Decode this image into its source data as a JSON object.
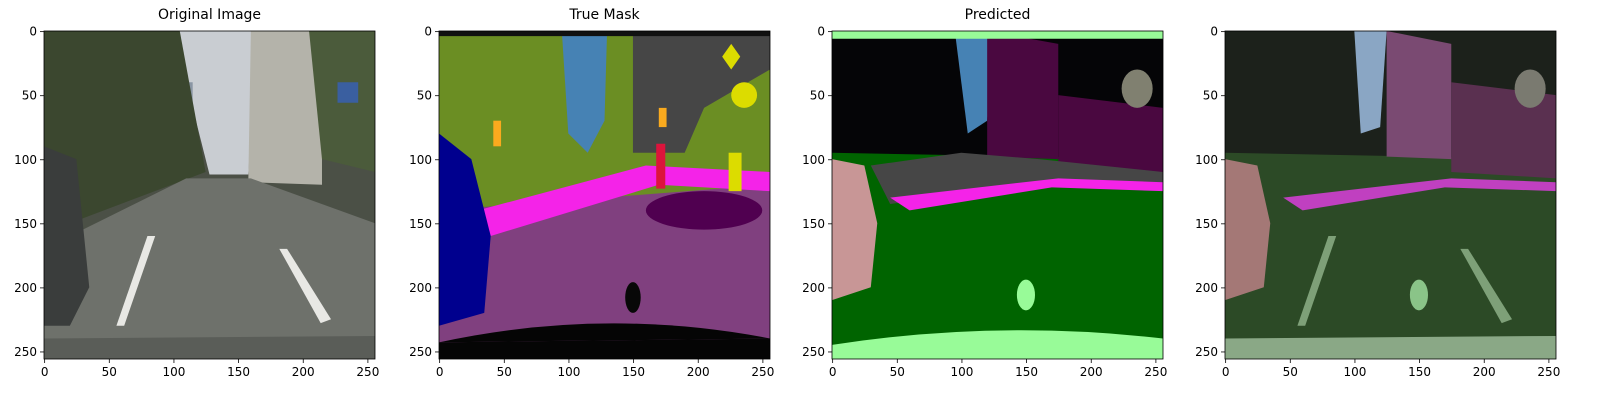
{
  "chart_data": [
    {
      "type": "image",
      "title": "Original Image",
      "xlim": [
        -0.5,
        255.5
      ],
      "ylim": [
        255.5,
        -0.5
      ],
      "xticks": [
        0,
        50,
        100,
        150,
        200,
        250
      ],
      "yticks": [
        0,
        50,
        100,
        150,
        200,
        250
      ]
    },
    {
      "type": "image",
      "title": "True Mask",
      "xlim": [
        -0.5,
        255.5
      ],
      "ylim": [
        255.5,
        -0.5
      ],
      "xticks": [
        0,
        50,
        100,
        150,
        200,
        250
      ],
      "yticks": [
        0,
        50,
        100,
        150,
        200,
        250
      ]
    },
    {
      "type": "image",
      "title": "Predicted",
      "xlim": [
        -0.5,
        255.5
      ],
      "ylim": [
        255.5,
        -0.5
      ],
      "xticks": [
        0,
        50,
        100,
        150,
        200,
        250
      ],
      "yticks": [
        0,
        50,
        100,
        150,
        200,
        250
      ]
    },
    {
      "type": "image",
      "xlim": [
        -0.5,
        255.5
      ],
      "ylim": [
        255.5,
        -0.5
      ],
      "xticks": [
        0,
        50,
        100,
        150,
        200,
        250
      ],
      "yticks": [
        0,
        50,
        100,
        150,
        200,
        250
      ]
    }
  ]
}
